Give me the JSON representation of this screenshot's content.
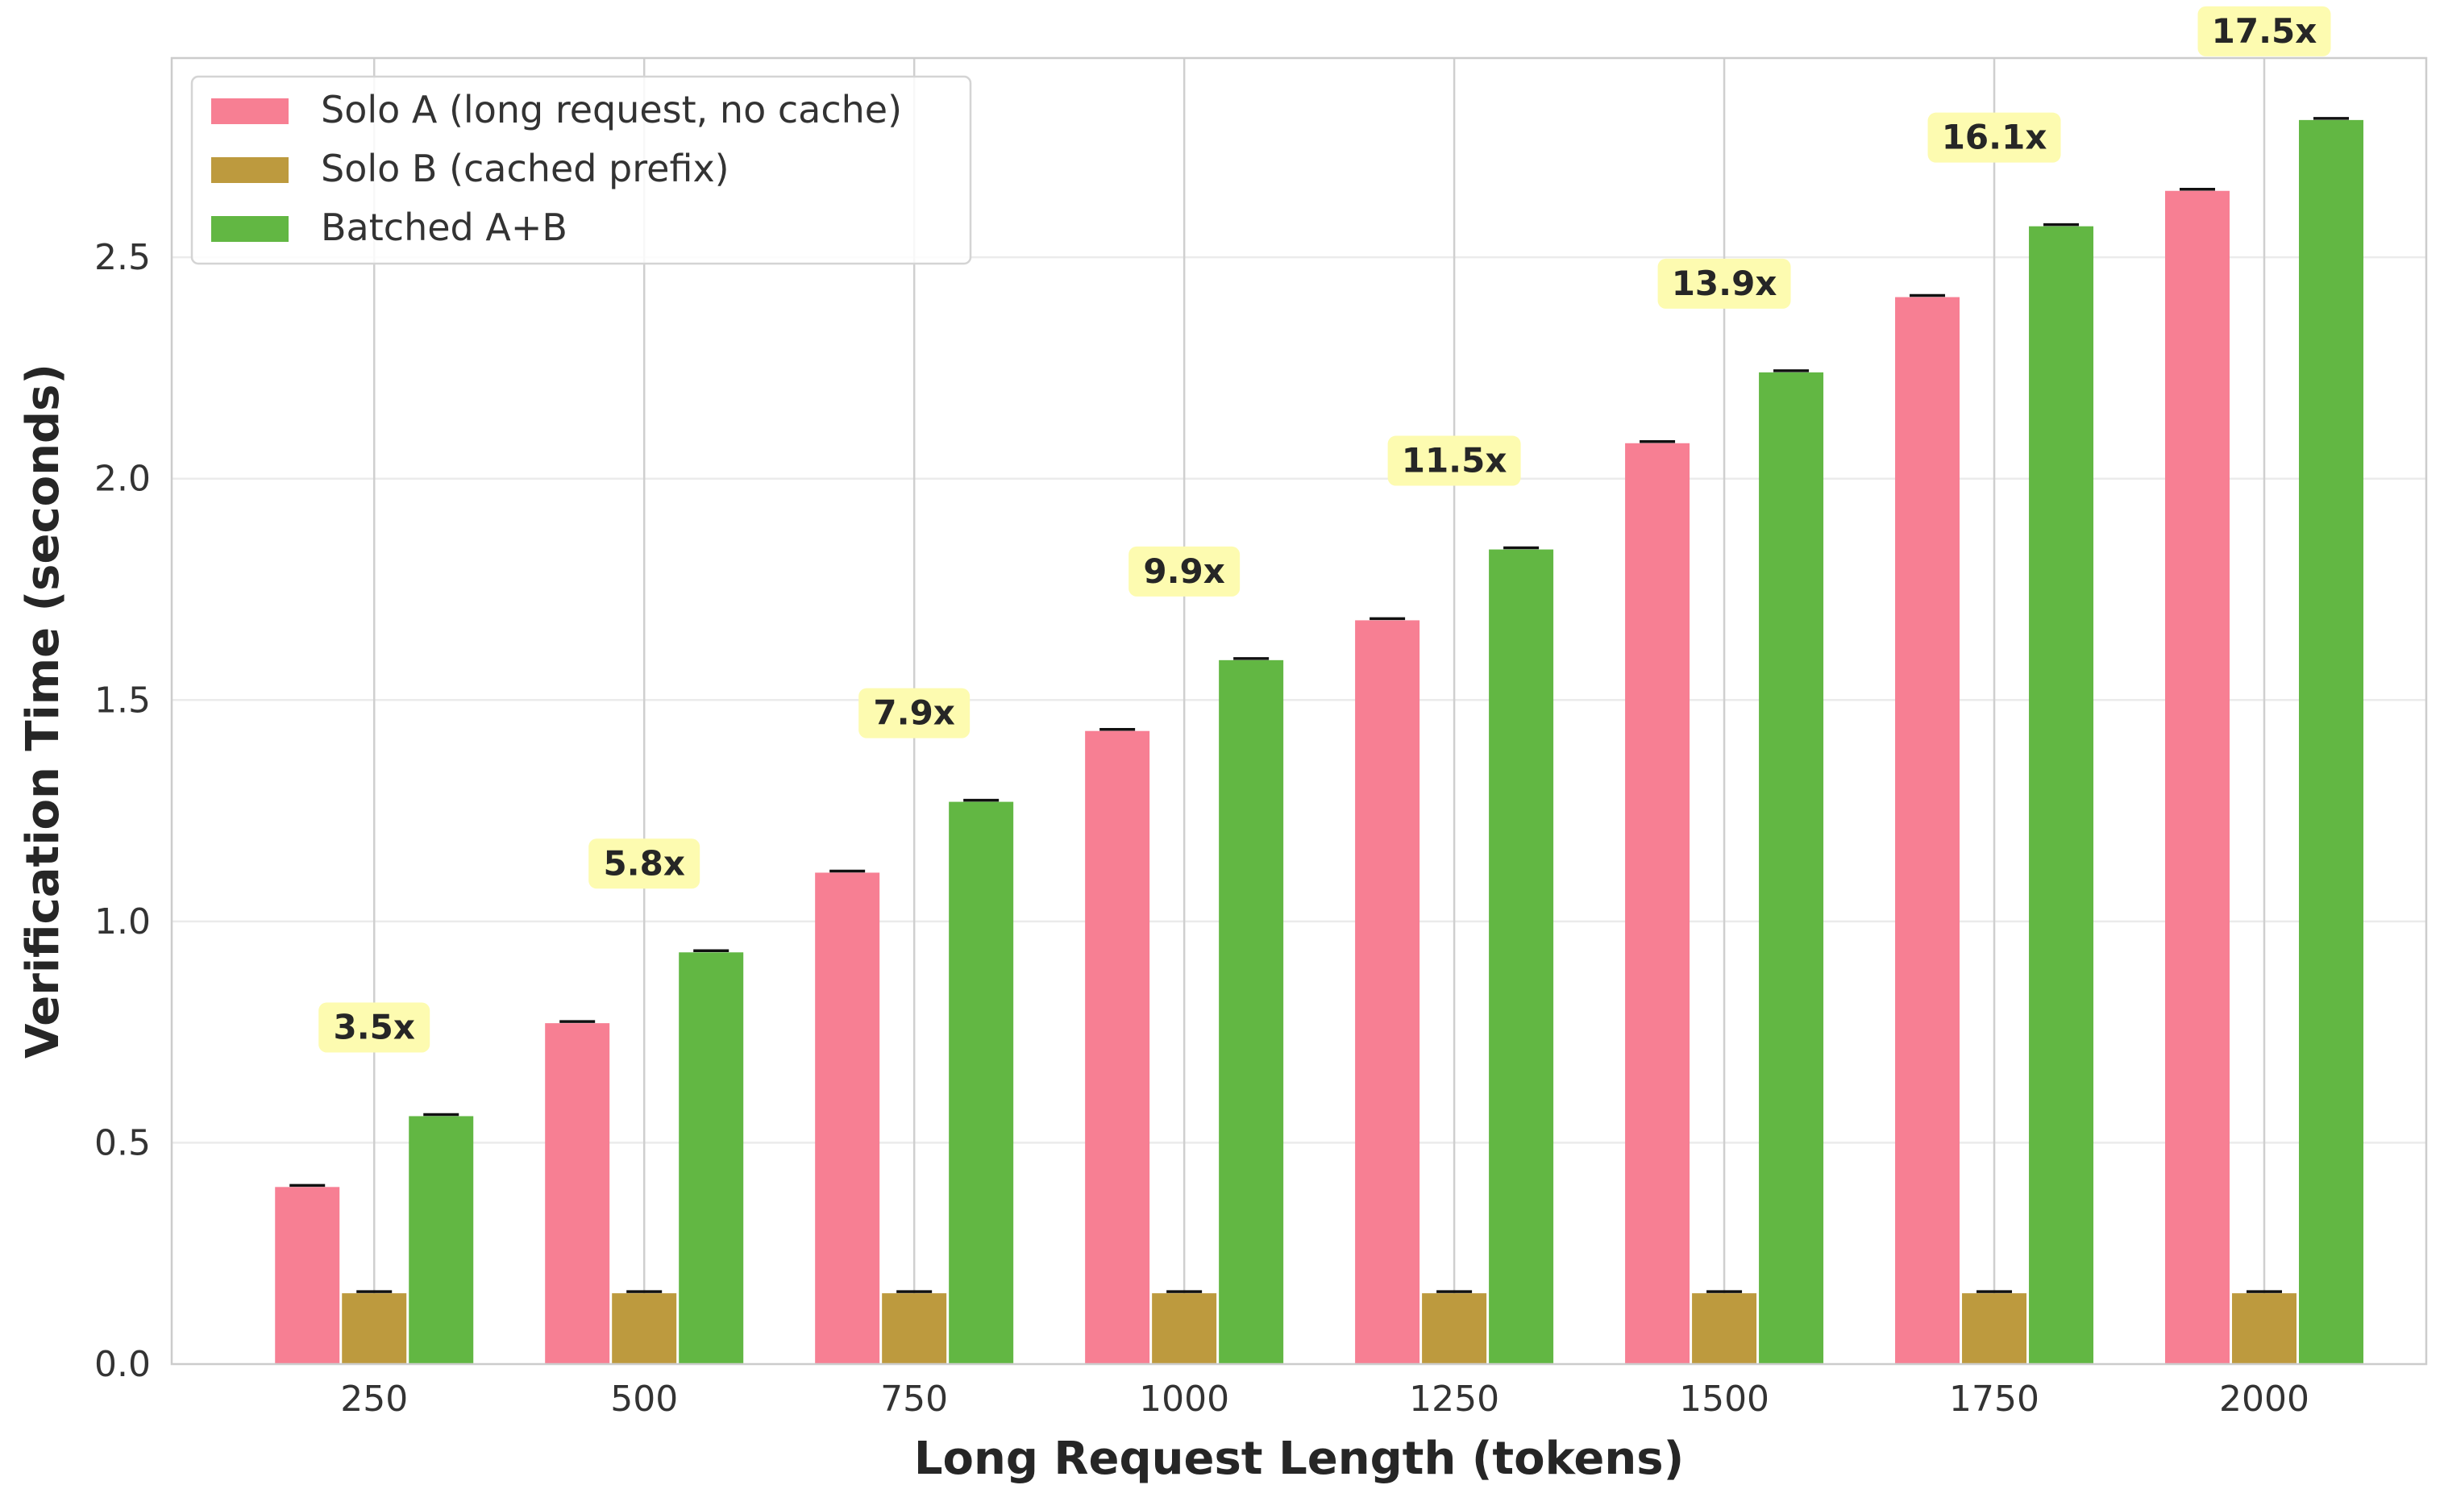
{
  "chart_data": {
    "type": "bar",
    "title": "",
    "xlabel": "Long Request Length (tokens)",
    "ylabel": "Verification Time (seconds)",
    "categories": [
      "250",
      "500",
      "750",
      "1000",
      "1250",
      "1500",
      "1750",
      "2000"
    ],
    "series": [
      {
        "name": "Solo A (long request, no cache)",
        "values": [
          0.4,
          0.77,
          1.11,
          1.43,
          1.68,
          2.08,
          2.41,
          2.65
        ],
        "color": "#f77f93"
      },
      {
        "name": "Solo B (cached prefix)",
        "values": [
          0.16,
          0.16,
          0.16,
          0.16,
          0.16,
          0.16,
          0.16,
          0.16
        ],
        "color": "#bd9a3e"
      },
      {
        "name": "Batched A+B",
        "values": [
          0.56,
          0.93,
          1.27,
          1.59,
          1.84,
          2.24,
          2.57,
          2.81
        ],
        "color": "#62b743"
      }
    ],
    "annotations": [
      "3.5x",
      "5.8x",
      "7.9x",
      "9.9x",
      "11.5x",
      "13.9x",
      "16.1x",
      "17.5x"
    ],
    "annotation_color": "#fdfbb0",
    "ylim": [
      0,
      2.95
    ],
    "yticks": [
      "0.0",
      "0.5",
      "1.0",
      "1.5",
      "2.0",
      "2.5"
    ],
    "legend_position": "top-left",
    "grid": true,
    "error_bars": true
  }
}
